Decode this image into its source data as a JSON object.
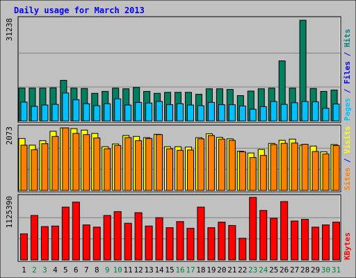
{
  "chart_data": {
    "type": "bar",
    "title": "Daily usage for March 2013",
    "categories": [
      "1",
      "2",
      "3",
      "4",
      "5",
      "6",
      "7",
      "8",
      "9",
      "10",
      "11",
      "12",
      "13",
      "14",
      "15",
      "16",
      "17",
      "18",
      "19",
      "20",
      "21",
      "22",
      "23",
      "24",
      "25",
      "26",
      "27",
      "28",
      "29",
      "30",
      "31"
    ],
    "weekend_days": [
      "2",
      "3",
      "9",
      "10",
      "16",
      "17",
      "23",
      "24",
      "30",
      "31"
    ],
    "panels": [
      {
        "id": "hits-files-pages",
        "ymax_label": "31238",
        "ylim": [
          0,
          31238
        ],
        "axis_label_parts": [
          {
            "text": "Pages",
            "color": "#00c0ff"
          },
          {
            "text": " / ",
            "color": "#0000ff"
          },
          {
            "text": "Files",
            "color": "#0000ff"
          },
          {
            "text": " / ",
            "color": "#0000ff"
          },
          {
            "text": "Hits",
            "color": "#008080"
          }
        ],
        "series": [
          {
            "name": "Hits",
            "color": "#008060",
            "values": [
              10100,
              10100,
              10100,
              10200,
              12500,
              10100,
              10000,
              8500,
              9100,
              10100,
              9900,
              10300,
              9100,
              8500,
              8800,
              8800,
              8800,
              8200,
              9900,
              9900,
              9700,
              7800,
              9200,
              9900,
              10100,
              18500,
              10100,
              31000,
              10000,
              9100,
              9500
            ]
          },
          {
            "name": "Files",
            "color": "#0000ff",
            "values": [
              0,
              0,
              0,
              0,
              0,
              0,
              0,
              0,
              0,
              0,
              0,
              0,
              0,
              0,
              0,
              0,
              0,
              0,
              0,
              0,
              0,
              0,
              0,
              0,
              0,
              0,
              0,
              0,
              0,
              0,
              0
            ]
          },
          {
            "name": "Pages",
            "color": "#00c0ff",
            "values": [
              5800,
              4500,
              4900,
              5100,
              8600,
              6500,
              5300,
              4700,
              5300,
              6800,
              4900,
              5700,
              5500,
              6000,
              5000,
              5300,
              4900,
              4700,
              5700,
              5000,
              5000,
              4600,
              3600,
              4400,
              6000,
              5100,
              5600,
              6000,
              5900,
              3900,
              5200
            ]
          }
        ]
      },
      {
        "id": "visits-sites",
        "ymax_label": "2073",
        "ylim": [
          0,
          2073
        ],
        "axis_label_parts": [
          {
            "text": "Sites",
            "color": "#ff8000"
          },
          {
            "text": " / ",
            "color": "#0000ff"
          },
          {
            "text": "Visits",
            "color": "#ffff00"
          }
        ],
        "series": [
          {
            "name": "Visits",
            "color": "#ffff00",
            "values": [
              1720,
              1500,
              1650,
              1960,
              2073,
              2050,
              2000,
              1890,
              1450,
              1540,
              1820,
              1790,
              1750,
              1860,
              1450,
              1450,
              1440,
              1750,
              1880,
              1760,
              1710,
              1300,
              1240,
              1360,
              1560,
              1660,
              1700,
              1500,
              1470,
              1280,
              1520
            ]
          },
          {
            "name": "Sites",
            "color": "#ff8000",
            "values": [
              1500,
              1350,
              1550,
              1790,
              2073,
              1890,
              1850,
              1740,
              1380,
              1490,
              1750,
              1650,
              1720,
              1850,
              1380,
              1330,
              1340,
              1710,
              1820,
              1700,
              1660,
              1280,
              1090,
              1160,
              1520,
              1560,
              1570,
              1530,
              1290,
              1210,
              1490
            ]
          }
        ]
      },
      {
        "id": "kbytes",
        "ymax_label": "1125390",
        "ylim": [
          0,
          1125390
        ],
        "axis_label_parts": [
          {
            "text": "KBytes",
            "color": "#ff0000"
          }
        ],
        "series": [
          {
            "name": "KBytes",
            "color": "#ff0000",
            "values": [
              470000,
              800000,
              600000,
              610000,
              950000,
              1040000,
              630000,
              590000,
              800000,
              870000,
              660000,
              850000,
              610000,
              760000,
              580000,
              690000,
              570000,
              950000,
              580000,
              680000,
              620000,
              390000,
              1125390,
              890000,
              750000,
              1050000,
              700000,
              730000,
              590000,
              630000,
              680000
            ]
          }
        ]
      }
    ],
    "colors": {
      "background": "#c0c0c0",
      "plot_background": "#c0c0c0",
      "grid": "#808080",
      "title": "#0000ff",
      "weekday_label": "#000000",
      "weekend_label": "#008040"
    }
  }
}
